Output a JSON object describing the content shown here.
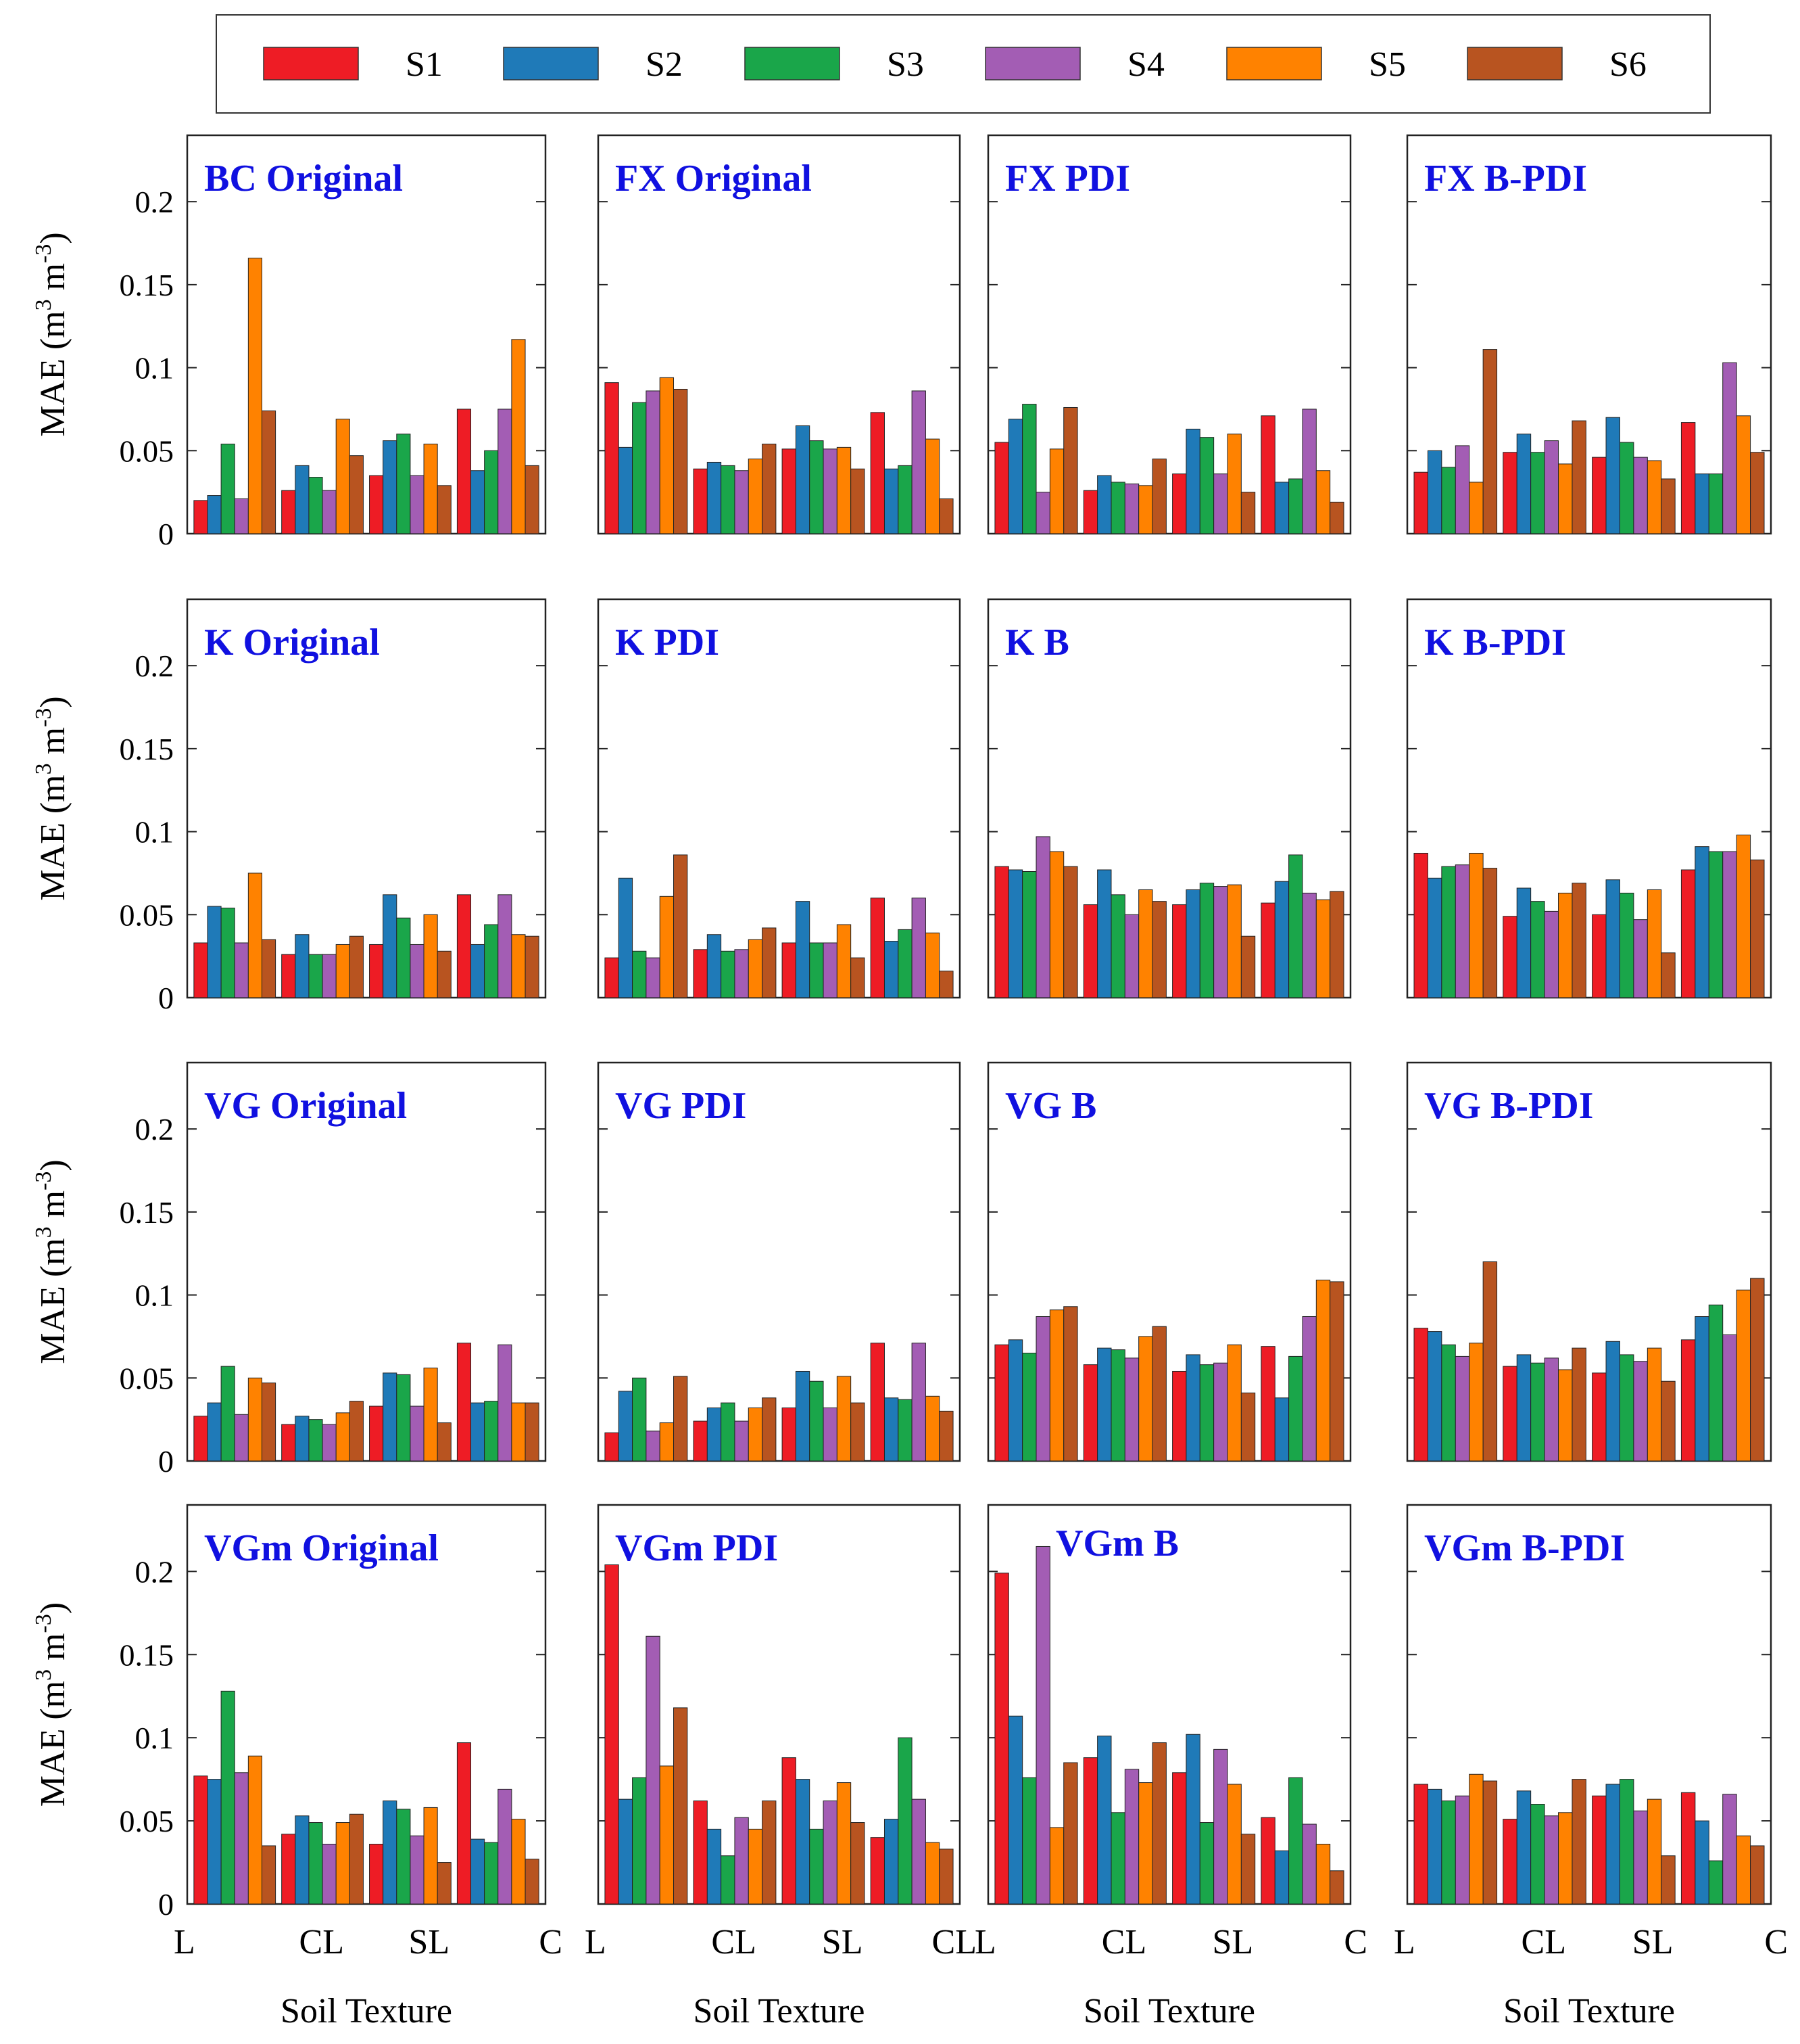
{
  "legend": {
    "entries": [
      "S1",
      "S2",
      "S3",
      "S4",
      "S5",
      "S6"
    ],
    "colors": [
      "#ee1c25",
      "#1f7ab8",
      "#1aa64a",
      "#a35db4",
      "#ff8200",
      "#b85420"
    ]
  },
  "axes": {
    "ylabel_main": "MAE (m",
    "ylabel_sup1": "3",
    "ylabel_mid": " m",
    "ylabel_sup2": "-3",
    "ylabel_end": ")",
    "yticks": [
      "0",
      "0.05",
      "0.1",
      "0.15",
      "0.2"
    ],
    "ytick_values": [
      0,
      0.05,
      0.1,
      0.15,
      0.2
    ],
    "ylim": [
      0,
      0.24
    ],
    "xlabel": "Soil Texture",
    "bottom_ticks": [
      [
        "L",
        "CL",
        "SL",
        "C"
      ],
      [
        "L",
        "CL",
        "SL",
        "CL"
      ],
      [
        "L",
        "CL",
        "SL",
        "C"
      ],
      [
        "L",
        "CL",
        "SL",
        "C"
      ]
    ]
  },
  "chart_data": [
    {
      "type": "bar",
      "title": "BC Original",
      "categories": [
        "L",
        "CL",
        "SL",
        "C"
      ],
      "series": [
        {
          "name": "S1",
          "values": [
            0.02,
            0.026,
            0.035,
            0.075
          ]
        },
        {
          "name": "S2",
          "values": [
            0.023,
            0.041,
            0.056,
            0.038
          ]
        },
        {
          "name": "S3",
          "values": [
            0.054,
            0.034,
            0.06,
            0.05
          ]
        },
        {
          "name": "S4",
          "values": [
            0.021,
            0.026,
            0.035,
            0.075
          ]
        },
        {
          "name": "S5",
          "values": [
            0.166,
            0.069,
            0.054,
            0.117
          ]
        },
        {
          "name": "S6",
          "values": [
            0.074,
            0.047,
            0.029,
            0.041
          ]
        }
      ]
    },
    {
      "type": "bar",
      "title": "FX Original",
      "categories": [
        "L",
        "CL",
        "SL",
        "C"
      ],
      "series": [
        {
          "name": "S1",
          "values": [
            0.091,
            0.039,
            0.051,
            0.073
          ]
        },
        {
          "name": "S2",
          "values": [
            0.052,
            0.043,
            0.065,
            0.039
          ]
        },
        {
          "name": "S3",
          "values": [
            0.079,
            0.041,
            0.056,
            0.041
          ]
        },
        {
          "name": "S4",
          "values": [
            0.086,
            0.038,
            0.051,
            0.086
          ]
        },
        {
          "name": "S5",
          "values": [
            0.094,
            0.045,
            0.052,
            0.057
          ]
        },
        {
          "name": "S6",
          "values": [
            0.087,
            0.054,
            0.039,
            0.021
          ]
        }
      ]
    },
    {
      "type": "bar",
      "title": "FX PDI",
      "categories": [
        "L",
        "CL",
        "SL",
        "C"
      ],
      "series": [
        {
          "name": "S1",
          "values": [
            0.055,
            0.026,
            0.036,
            0.071
          ]
        },
        {
          "name": "S2",
          "values": [
            0.069,
            0.035,
            0.063,
            0.031
          ]
        },
        {
          "name": "S3",
          "values": [
            0.078,
            0.031,
            0.058,
            0.033
          ]
        },
        {
          "name": "S4",
          "values": [
            0.025,
            0.03,
            0.036,
            0.075
          ]
        },
        {
          "name": "S5",
          "values": [
            0.051,
            0.029,
            0.06,
            0.038
          ]
        },
        {
          "name": "S6",
          "values": [
            0.076,
            0.045,
            0.025,
            0.019
          ]
        }
      ]
    },
    {
      "type": "bar",
      "title": "FX B-PDI",
      "categories": [
        "L",
        "CL",
        "SL",
        "C"
      ],
      "series": [
        {
          "name": "S1",
          "values": [
            0.037,
            0.049,
            0.046,
            0.067
          ]
        },
        {
          "name": "S2",
          "values": [
            0.05,
            0.06,
            0.07,
            0.036
          ]
        },
        {
          "name": "S3",
          "values": [
            0.04,
            0.049,
            0.055,
            0.036
          ]
        },
        {
          "name": "S4",
          "values": [
            0.053,
            0.056,
            0.046,
            0.103
          ]
        },
        {
          "name": "S5",
          "values": [
            0.031,
            0.042,
            0.044,
            0.071
          ]
        },
        {
          "name": "S6",
          "values": [
            0.111,
            0.068,
            0.033,
            0.049
          ]
        }
      ]
    },
    {
      "type": "bar",
      "title": "K Original",
      "categories": [
        "L",
        "CL",
        "SL",
        "C"
      ],
      "series": [
        {
          "name": "S1",
          "values": [
            0.033,
            0.026,
            0.032,
            0.062
          ]
        },
        {
          "name": "S2",
          "values": [
            0.055,
            0.038,
            0.062,
            0.032
          ]
        },
        {
          "name": "S3",
          "values": [
            0.054,
            0.026,
            0.048,
            0.044
          ]
        },
        {
          "name": "S4",
          "values": [
            0.033,
            0.026,
            0.032,
            0.062
          ]
        },
        {
          "name": "S5",
          "values": [
            0.075,
            0.032,
            0.05,
            0.038
          ]
        },
        {
          "name": "S6",
          "values": [
            0.035,
            0.037,
            0.028,
            0.037
          ]
        }
      ]
    },
    {
      "type": "bar",
      "title": "K PDI",
      "categories": [
        "L",
        "CL",
        "SL",
        "C"
      ],
      "series": [
        {
          "name": "S1",
          "values": [
            0.024,
            0.029,
            0.033,
            0.06
          ]
        },
        {
          "name": "S2",
          "values": [
            0.072,
            0.038,
            0.058,
            0.034
          ]
        },
        {
          "name": "S3",
          "values": [
            0.028,
            0.028,
            0.033,
            0.041
          ]
        },
        {
          "name": "S4",
          "values": [
            0.024,
            0.029,
            0.033,
            0.06
          ]
        },
        {
          "name": "S5",
          "values": [
            0.061,
            0.035,
            0.044,
            0.039
          ]
        },
        {
          "name": "S6",
          "values": [
            0.086,
            0.042,
            0.024,
            0.016
          ]
        }
      ]
    },
    {
      "type": "bar",
      "title": "K B",
      "categories": [
        "L",
        "CL",
        "SL",
        "C"
      ],
      "series": [
        {
          "name": "S1",
          "values": [
            0.079,
            0.056,
            0.056,
            0.057
          ]
        },
        {
          "name": "S2",
          "values": [
            0.077,
            0.077,
            0.065,
            0.07
          ]
        },
        {
          "name": "S3",
          "values": [
            0.076,
            0.062,
            0.069,
            0.086
          ]
        },
        {
          "name": "S4",
          "values": [
            0.097,
            0.05,
            0.067,
            0.063
          ]
        },
        {
          "name": "S5",
          "values": [
            0.088,
            0.065,
            0.068,
            0.059
          ]
        },
        {
          "name": "S6",
          "values": [
            0.079,
            0.058,
            0.037,
            0.064
          ]
        }
      ]
    },
    {
      "type": "bar",
      "title": "K B-PDI",
      "categories": [
        "L",
        "CL",
        "SL",
        "C"
      ],
      "series": [
        {
          "name": "S1",
          "values": [
            0.087,
            0.049,
            0.05,
            0.077
          ]
        },
        {
          "name": "S2",
          "values": [
            0.072,
            0.066,
            0.071,
            0.091
          ]
        },
        {
          "name": "S3",
          "values": [
            0.079,
            0.058,
            0.063,
            0.088
          ]
        },
        {
          "name": "S4",
          "values": [
            0.08,
            0.052,
            0.047,
            0.088
          ]
        },
        {
          "name": "S5",
          "values": [
            0.087,
            0.063,
            0.065,
            0.098
          ]
        },
        {
          "name": "S6",
          "values": [
            0.078,
            0.069,
            0.027,
            0.083
          ]
        }
      ]
    },
    {
      "type": "bar",
      "title": "VG Original",
      "categories": [
        "L",
        "CL",
        "SL",
        "C"
      ],
      "series": [
        {
          "name": "S1",
          "values": [
            0.027,
            0.022,
            0.033,
            0.071
          ]
        },
        {
          "name": "S2",
          "values": [
            0.035,
            0.027,
            0.053,
            0.035
          ]
        },
        {
          "name": "S3",
          "values": [
            0.057,
            0.025,
            0.052,
            0.036
          ]
        },
        {
          "name": "S4",
          "values": [
            0.028,
            0.022,
            0.033,
            0.07
          ]
        },
        {
          "name": "S5",
          "values": [
            0.05,
            0.029,
            0.056,
            0.035
          ]
        },
        {
          "name": "S6",
          "values": [
            0.047,
            0.036,
            0.023,
            0.035
          ]
        }
      ]
    },
    {
      "type": "bar",
      "title": "VG PDI",
      "categories": [
        "L",
        "CL",
        "SL",
        "C"
      ],
      "series": [
        {
          "name": "S1",
          "values": [
            0.017,
            0.024,
            0.032,
            0.071
          ]
        },
        {
          "name": "S2",
          "values": [
            0.042,
            0.032,
            0.054,
            0.038
          ]
        },
        {
          "name": "S3",
          "values": [
            0.05,
            0.035,
            0.048,
            0.037
          ]
        },
        {
          "name": "S4",
          "values": [
            0.018,
            0.024,
            0.032,
            0.071
          ]
        },
        {
          "name": "S5",
          "values": [
            0.023,
            0.032,
            0.051,
            0.039
          ]
        },
        {
          "name": "S6",
          "values": [
            0.051,
            0.038,
            0.035,
            0.03
          ]
        }
      ]
    },
    {
      "type": "bar",
      "title": "VG B",
      "categories": [
        "L",
        "CL",
        "SL",
        "C"
      ],
      "series": [
        {
          "name": "S1",
          "values": [
            0.07,
            0.058,
            0.054,
            0.069
          ]
        },
        {
          "name": "S2",
          "values": [
            0.073,
            0.068,
            0.064,
            0.038
          ]
        },
        {
          "name": "S3",
          "values": [
            0.065,
            0.067,
            0.058,
            0.063
          ]
        },
        {
          "name": "S4",
          "values": [
            0.087,
            0.062,
            0.059,
            0.087
          ]
        },
        {
          "name": "S5",
          "values": [
            0.091,
            0.075,
            0.07,
            0.109
          ]
        },
        {
          "name": "S6",
          "values": [
            0.093,
            0.081,
            0.041,
            0.108
          ]
        }
      ]
    },
    {
      "type": "bar",
      "title": "VG B-PDI",
      "categories": [
        "L",
        "CL",
        "SL",
        "C"
      ],
      "series": [
        {
          "name": "S1",
          "values": [
            0.08,
            0.057,
            0.053,
            0.073
          ]
        },
        {
          "name": "S2",
          "values": [
            0.078,
            0.064,
            0.072,
            0.087
          ]
        },
        {
          "name": "S3",
          "values": [
            0.07,
            0.059,
            0.064,
            0.094
          ]
        },
        {
          "name": "S4",
          "values": [
            0.063,
            0.062,
            0.06,
            0.076
          ]
        },
        {
          "name": "S5",
          "values": [
            0.071,
            0.055,
            0.068,
            0.103
          ]
        },
        {
          "name": "S6",
          "values": [
            0.12,
            0.068,
            0.048,
            0.11
          ]
        }
      ]
    },
    {
      "type": "bar",
      "title": "VGm Original",
      "categories": [
        "L",
        "CL",
        "SL",
        "C"
      ],
      "series": [
        {
          "name": "S1",
          "values": [
            0.077,
            0.042,
            0.036,
            0.097
          ]
        },
        {
          "name": "S2",
          "values": [
            0.075,
            0.053,
            0.062,
            0.039
          ]
        },
        {
          "name": "S3",
          "values": [
            0.128,
            0.049,
            0.057,
            0.037
          ]
        },
        {
          "name": "S4",
          "values": [
            0.079,
            0.036,
            0.041,
            0.069
          ]
        },
        {
          "name": "S5",
          "values": [
            0.089,
            0.049,
            0.058,
            0.051
          ]
        },
        {
          "name": "S6",
          "values": [
            0.035,
            0.054,
            0.025,
            0.027
          ]
        }
      ]
    },
    {
      "type": "bar",
      "title": "VGm PDI",
      "categories": [
        "L",
        "CL",
        "SL",
        "CL"
      ],
      "series": [
        {
          "name": "S1",
          "values": [
            0.204,
            0.062,
            0.088,
            0.04
          ]
        },
        {
          "name": "S2",
          "values": [
            0.063,
            0.045,
            0.075,
            0.051
          ]
        },
        {
          "name": "S3",
          "values": [
            0.076,
            0.029,
            0.045,
            0.1
          ]
        },
        {
          "name": "S4",
          "values": [
            0.161,
            0.052,
            0.062,
            0.063
          ]
        },
        {
          "name": "S5",
          "values": [
            0.083,
            0.045,
            0.073,
            0.037
          ]
        },
        {
          "name": "S6",
          "values": [
            0.118,
            0.062,
            0.049,
            0.033
          ]
        }
      ]
    },
    {
      "type": "bar",
      "title": "VGm B",
      "categories": [
        "L",
        "CL",
        "SL",
        "C"
      ],
      "series": [
        {
          "name": "S1",
          "values": [
            0.199,
            0.088,
            0.079,
            0.052
          ]
        },
        {
          "name": "S2",
          "values": [
            0.113,
            0.101,
            0.102,
            0.032
          ]
        },
        {
          "name": "S3",
          "values": [
            0.076,
            0.055,
            0.049,
            0.076
          ]
        },
        {
          "name": "S4",
          "values": [
            0.215,
            0.081,
            0.093,
            0.048
          ]
        },
        {
          "name": "S5",
          "values": [
            0.046,
            0.073,
            0.072,
            0.036
          ]
        },
        {
          "name": "S6",
          "values": [
            0.085,
            0.097,
            0.042,
            0.02
          ]
        }
      ]
    },
    {
      "type": "bar",
      "title": "VGm B-PDI",
      "categories": [
        "L",
        "CL",
        "SL",
        "C"
      ],
      "series": [
        {
          "name": "S1",
          "values": [
            0.072,
            0.051,
            0.065,
            0.067
          ]
        },
        {
          "name": "S2",
          "values": [
            0.069,
            0.068,
            0.072,
            0.05
          ]
        },
        {
          "name": "S3",
          "values": [
            0.062,
            0.06,
            0.075,
            0.026
          ]
        },
        {
          "name": "S4",
          "values": [
            0.065,
            0.053,
            0.056,
            0.066
          ]
        },
        {
          "name": "S5",
          "values": [
            0.078,
            0.055,
            0.063,
            0.041
          ]
        },
        {
          "name": "S6",
          "values": [
            0.074,
            0.075,
            0.029,
            0.035
          ]
        }
      ]
    }
  ]
}
